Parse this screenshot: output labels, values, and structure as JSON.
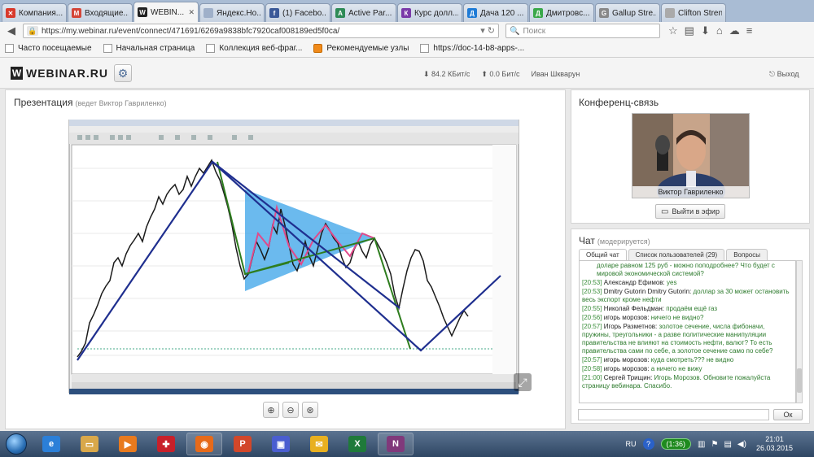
{
  "tabs": [
    {
      "title": "Компания...",
      "icon": "x-icon",
      "color": "#d83a2c",
      "glyph": "✕",
      "active": false
    },
    {
      "title": "Входящие...",
      "icon": "gmail-icon",
      "color": "#d44638",
      "glyph": "M",
      "active": false
    },
    {
      "title": "WEBIN...",
      "icon": "webinar-icon",
      "color": "#222222",
      "glyph": "W",
      "active": true
    },
    {
      "title": "Яндекс.Но...",
      "icon": "yandex-news-icon",
      "color": "#9fb0c9",
      "glyph": "",
      "active": false
    },
    {
      "title": "(1) Facebo...",
      "icon": "facebook-icon",
      "color": "#3b5998",
      "glyph": "f",
      "active": false
    },
    {
      "title": "Active Par...",
      "icon": "page-icon",
      "color": "#2e8b57",
      "glyph": "A",
      "active": false
    },
    {
      "title": "Курс долл...",
      "icon": "page-icon",
      "color": "#7a3aa8",
      "glyph": "К",
      "active": false
    },
    {
      "title": "Дача 120 ...",
      "icon": "page-icon",
      "color": "#1f7bd6",
      "glyph": "Д",
      "active": false
    },
    {
      "title": "Дмитровс...",
      "icon": "page-icon",
      "color": "#3aa84a",
      "glyph": "Д",
      "active": false
    },
    {
      "title": "Gallup Stre...",
      "icon": "page-icon",
      "color": "#888888",
      "glyph": "G",
      "active": false
    },
    {
      "title": "Clifton Strength",
      "icon": "page-icon",
      "color": "#aaaaaa",
      "glyph": "",
      "active": false
    }
  ],
  "nav": {
    "url": "https://my.webinar.ru/event/connect/471691/6269a9838bfc7920caf008189ed5f0ca/",
    "search_placeholder": "Поиск"
  },
  "bookmarks": [
    {
      "label": "Часто посещаемые",
      "fire": false
    },
    {
      "label": "Начальная страница",
      "fire": false
    },
    {
      "label": "Коллекция веб-фраг...",
      "fire": false
    },
    {
      "label": "Рекомендуемые узлы",
      "fire": true
    },
    {
      "label": "https://doc-14-b8-apps-...",
      "fire": false
    }
  ],
  "header": {
    "logo_letter": "W",
    "logo_text": "WEBINAR.RU",
    "down_speed": "⬇ 84.2 КБит/с",
    "up_speed": "⬆ 0.0 Бит/с",
    "user": "Иван Шкварун",
    "exit": "Выход"
  },
  "presentation": {
    "title": "Презентация",
    "presenter": "(ведет Виктор Гавриленко)"
  },
  "conference": {
    "title": "Конференц-связь",
    "speaker_name": "Виктор Гавриленко",
    "air_button": "Выйти в эфир"
  },
  "chat": {
    "title": "Чат",
    "moderated": "(модерируется)",
    "tabs": [
      "Общий чат",
      "Список пользователей (29)",
      "Вопросы"
    ],
    "messages": [
      {
        "time": "",
        "author": "",
        "text": "доларе равном 125 руб - можно поподробнее? Что будет с мировой экономической системой?"
      },
      {
        "time": "[20:53]",
        "author": "Александр Ефимов:",
        "text": "yes"
      },
      {
        "time": "[20:53]",
        "author": "Dmitry Gutorin Dmitry Gutorin:",
        "text": "доллар за 30 может остановить весь экспорт кроме нефти"
      },
      {
        "time": "[20:55]",
        "author": "Николай Фельдман:",
        "text": "продаём ещё газ"
      },
      {
        "time": "[20:56]",
        "author": "игорь морозов:",
        "text": "ничего не видно?"
      },
      {
        "time": "[20:57]",
        "author": "Игорь Разметнов:",
        "text": "золотое сечение, числа фибоначи, пружины, треугольники - а разве политические манипуляции правительства не влияют на стоимость нефти, валют? То есть правительства сами по себе, а золотое сечение само по себе?"
      },
      {
        "time": "[20:57]",
        "author": "игорь морозов:",
        "text": "куда смотреть??? не видно"
      },
      {
        "time": "[20:58]",
        "author": "игорь морозов:",
        "text": "а ничего не вижу"
      },
      {
        "time": "[21:00]",
        "author": "Сергей Трищин:",
        "text": "Игорь Морозов. Обновите пожалуйста страницу вебинара. Спасибо."
      }
    ],
    "ok_button": "Ок"
  },
  "taskbar": {
    "apps": [
      {
        "name": "ie-icon",
        "color": "#2b7fd8",
        "glyph": "e",
        "running": false
      },
      {
        "name": "explorer-icon",
        "color": "#d9a84a",
        "glyph": "▭",
        "running": false
      },
      {
        "name": "media-player-icon",
        "color": "#e87a1e",
        "glyph": "▶",
        "running": false
      },
      {
        "name": "acrobat-icon",
        "color": "#c8202a",
        "glyph": "✚",
        "running": false
      },
      {
        "name": "firefox-icon",
        "color": "#e66a1a",
        "glyph": "◉",
        "running": true
      },
      {
        "name": "powerpoint-icon",
        "color": "#d2472a",
        "glyph": "P",
        "running": false
      },
      {
        "name": "save-icon",
        "color": "#4a5ed0",
        "glyph": "▣",
        "running": false
      },
      {
        "name": "outlook-icon",
        "color": "#e8b020",
        "glyph": "✉",
        "running": false
      },
      {
        "name": "excel-icon",
        "color": "#1f7a3a",
        "glyph": "X",
        "running": false
      },
      {
        "name": "onenote-icon",
        "color": "#80397b",
        "glyph": "N",
        "running": true
      }
    ],
    "lang": "RU",
    "timer": "1:36",
    "time": "21:01",
    "date": "26.03.2015"
  }
}
